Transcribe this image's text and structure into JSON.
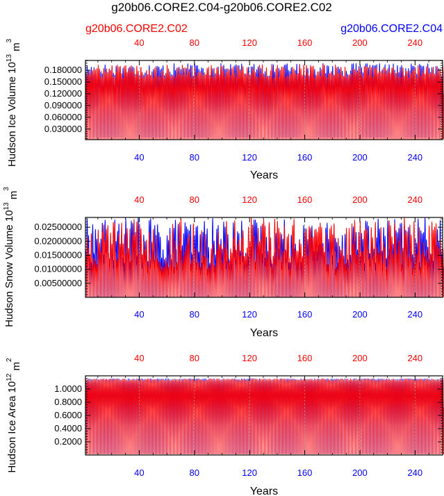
{
  "title": "g20b06.CORE2.C04-g20b06.CORE2.C02",
  "legend": {
    "left_case": "g20b06.CORE2.C02",
    "right_case": "g20b06.CORE2.C04"
  },
  "colors": {
    "case_c02": "#ff0000",
    "case_c04": "#0000ff",
    "axis": "#000000",
    "grid": "#9a9a9a"
  },
  "chart_data": [
    {
      "type": "line",
      "id": "ice-volume",
      "ylabel_main": "Hudson Ice Volume 10",
      "ylabel_exp": "13",
      "ylabel_unit": " m",
      "ylabel_unit_exp": "3",
      "xlabel": "Years",
      "xlim": [
        1,
        260
      ],
      "ylim": [
        0.003,
        0.205
      ],
      "yticks": [
        "0.030000",
        "0.060000",
        "0.090000",
        "0.120000",
        "0.150000",
        "0.180000"
      ],
      "ytick_values": [
        0.03,
        0.06,
        0.09,
        0.12,
        0.15,
        0.18
      ],
      "xticks": [
        "40",
        "80",
        "120",
        "160",
        "200",
        "240"
      ],
      "xtick_values": [
        40,
        80,
        120,
        160,
        200,
        240
      ],
      "series": [
        {
          "name": "g20b06.CORE2.C04",
          "color": "#0000ff",
          "monthly_min": 0.008,
          "monthly_max_range": [
            0.165,
            0.198
          ]
        },
        {
          "name": "g20b06.CORE2.C02",
          "color": "#ff0000",
          "monthly_min": 0.004,
          "monthly_max_range": [
            0.16,
            0.195
          ]
        }
      ]
    },
    {
      "type": "line",
      "id": "snow-volume",
      "ylabel_main": "Hudson Snow Volume 10",
      "ylabel_exp": "13",
      "ylabel_unit": " m",
      "ylabel_unit_exp": "3",
      "xlabel": "Years",
      "xlim": [
        1,
        260
      ],
      "ylim": [
        0.0,
        0.0285
      ],
      "yticks": [
        "0.00500000",
        "0.01000000",
        "0.01500000",
        "0.02000000",
        "0.02500000"
      ],
      "ytick_values": [
        0.005,
        0.01,
        0.015,
        0.02,
        0.025
      ],
      "xticks": [
        "40",
        "80",
        "120",
        "160",
        "200",
        "240"
      ],
      "xtick_values": [
        40,
        80,
        120,
        160,
        200,
        240
      ],
      "series": [
        {
          "name": "g20b06.CORE2.C04",
          "color": "#0000ff",
          "monthly_min": 0.0,
          "monthly_max_range": [
            0.012,
            0.0285
          ]
        },
        {
          "name": "g20b06.CORE2.C02",
          "color": "#ff0000",
          "monthly_min": 0.0,
          "monthly_max_range": [
            0.01,
            0.0285
          ]
        }
      ]
    },
    {
      "type": "line",
      "id": "ice-area",
      "ylabel_main": "Hudson Ice Area 10",
      "ylabel_exp": "12",
      "ylabel_unit": " m",
      "ylabel_unit_exp": "2",
      "xlabel": "Years",
      "xlim": [
        1,
        260
      ],
      "ylim": [
        0.0,
        1.2
      ],
      "yticks": [
        "0.2000",
        "0.4000",
        "0.6000",
        "0.8000",
        "1.0000"
      ],
      "ytick_values": [
        0.2,
        0.4,
        0.6,
        0.8,
        1.0
      ],
      "xticks": [
        "40",
        "80",
        "120",
        "160",
        "200",
        "240"
      ],
      "xtick_values": [
        40,
        80,
        120,
        160,
        200,
        240
      ],
      "series": [
        {
          "name": "g20b06.CORE2.C04",
          "color": "#0000ff",
          "monthly_min": 0.02,
          "monthly_max_range": [
            1.14,
            1.16
          ]
        },
        {
          "name": "g20b06.CORE2.C02",
          "color": "#ff0000",
          "monthly_min": 0.01,
          "monthly_max_range": [
            1.13,
            1.16
          ]
        }
      ]
    }
  ]
}
